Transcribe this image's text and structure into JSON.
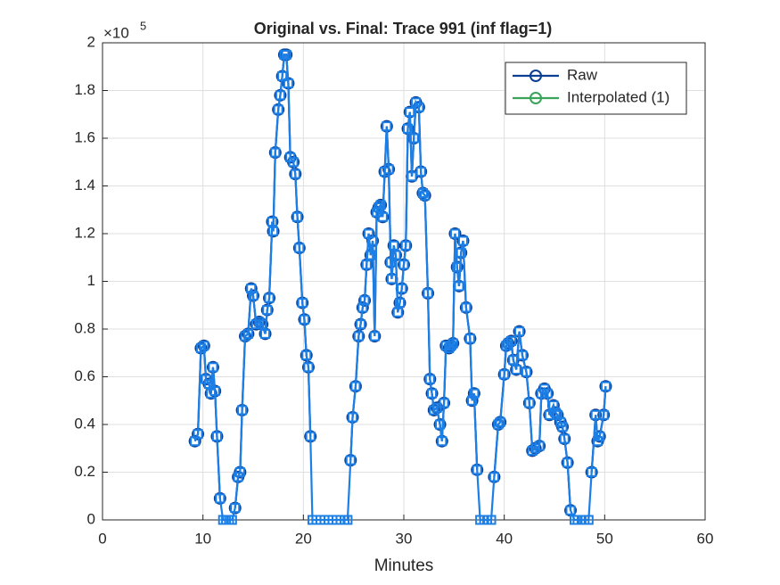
{
  "chart_data": {
    "type": "line",
    "title": "Original vs. Final: Trace 991 (inf flag=1)",
    "xlabel": "Minutes",
    "y_exponent_base": "×10",
    "y_exponent": "5",
    "xlim": [
      0,
      60
    ],
    "xticks": [
      0,
      10,
      20,
      30,
      40,
      50,
      60
    ],
    "ylim": [
      0,
      200000
    ],
    "yticks": [
      0,
      {
        "value": 20000,
        "label": "0.2"
      },
      {
        "value": 40000,
        "label": "0.4"
      },
      {
        "value": 60000,
        "label": "0.6"
      },
      {
        "value": 80000,
        "label": "0.8"
      },
      {
        "value": 100000,
        "label": "1"
      },
      {
        "value": 120000,
        "label": "1.2"
      },
      {
        "value": 140000,
        "label": "1.4"
      },
      {
        "value": 160000,
        "label": "1.6"
      },
      {
        "value": 180000,
        "label": "1.8"
      },
      {
        "value": 200000,
        "label": "2"
      }
    ],
    "grid": true,
    "legend": "upper right",
    "x": [
      9.2,
      9.5,
      9.8,
      10.1,
      10.3,
      10.6,
      10.8,
      11.0,
      11.2,
      11.4,
      11.7,
      12.0,
      12.3,
      12.6,
      12.9,
      13.2,
      13.5,
      13.7,
      13.9,
      14.2,
      14.5,
      14.8,
      15.0,
      15.3,
      15.6,
      15.9,
      16.2,
      16.4,
      16.6,
      16.9,
      17.0,
      17.2,
      17.5,
      17.7,
      17.9,
      18.1,
      18.3,
      18.5,
      18.7,
      19.0,
      19.2,
      19.4,
      19.6,
      19.9,
      20.1,
      20.3,
      20.5,
      20.7,
      20.9,
      21.3,
      21.7,
      22.1,
      22.5,
      22.9,
      23.3,
      23.7,
      24.1,
      24.4,
      24.7,
      24.9,
      25.2,
      25.5,
      25.7,
      25.9,
      26.1,
      26.3,
      26.5,
      26.7,
      26.9,
      27.1,
      27.3,
      27.5,
      27.7,
      27.9,
      28.1,
      28.3,
      28.5,
      28.7,
      28.8,
      29.0,
      29.2,
      29.4,
      29.6,
      29.8,
      30.0,
      30.2,
      30.4,
      30.6,
      30.8,
      31.0,
      31.2,
      31.5,
      31.7,
      31.9,
      32.1,
      32.4,
      32.6,
      32.8,
      33.0,
      33.3,
      33.6,
      33.8,
      34.0,
      34.2,
      34.5,
      34.7,
      34.9,
      35.1,
      35.3,
      35.5,
      35.7,
      35.9,
      36.2,
      36.6,
      36.8,
      37.0,
      37.3,
      37.6,
      38.0,
      38.3,
      38.7,
      39.0,
      39.4,
      39.6,
      40.0,
      40.2,
      40.4,
      40.7,
      40.9,
      41.2,
      41.5,
      41.8,
      42.2,
      42.5,
      42.8,
      43.1,
      43.5,
      43.7,
      44.0,
      44.3,
      44.5,
      44.9,
      45.1,
      45.3,
      45.6,
      45.8,
      46.0,
      46.3,
      46.6,
      47.0,
      47.3,
      47.7,
      48.0,
      48.4,
      48.7,
      49.1,
      49.3,
      49.5,
      49.9,
      50.1
    ],
    "series": [
      {
        "name": "Raw",
        "color": "#0b3f94",
        "marker": "circle",
        "values": [
          33000,
          36000,
          72000,
          73000,
          59000,
          57000,
          53000,
          64000,
          54000,
          35000,
          9000,
          null,
          null,
          null,
          null,
          5000,
          18000,
          20000,
          46000,
          77000,
          78000,
          97000,
          94000,
          82000,
          83000,
          82000,
          78000,
          88000,
          93000,
          125000,
          121000,
          154000,
          172000,
          178000,
          186000,
          195000,
          195000,
          183000,
          152000,
          150000,
          145000,
          127000,
          114000,
          91000,
          84000,
          69000,
          64000,
          35000,
          null,
          null,
          null,
          null,
          null,
          null,
          null,
          null,
          null,
          null,
          25000,
          43000,
          56000,
          77000,
          82000,
          89000,
          92000,
          107000,
          120000,
          111000,
          117000,
          77000,
          129000,
          131000,
          132000,
          127000,
          146000,
          165000,
          147000,
          108000,
          101000,
          115000,
          111000,
          87000,
          91000,
          97000,
          107000,
          115000,
          164000,
          171000,
          144000,
          160000,
          175000,
          173000,
          146000,
          137000,
          136000,
          95000,
          59000,
          53000,
          46000,
          47000,
          40000,
          33000,
          49000,
          73000,
          72000,
          73000,
          74000,
          120000,
          106000,
          98000,
          112000,
          117000,
          89000,
          76000,
          50000,
          53000,
          21000,
          null,
          null,
          null,
          null,
          18000,
          40000,
          41000,
          61000,
          73000,
          74000,
          75000,
          67000,
          63000,
          79000,
          69000,
          62000,
          49000,
          29000,
          30000,
          31000,
          53000,
          55000,
          53000,
          44000,
          48000,
          45000,
          44000,
          41000,
          39000,
          34000,
          24000,
          4000,
          null,
          null,
          null,
          null,
          null,
          20000,
          44000,
          33000,
          35000,
          44000,
          56000
        ]
      },
      {
        "name": "Interpolated (1)",
        "color": "#3aa35a",
        "marker": "circle",
        "values": [
          null,
          null,
          null,
          null,
          null,
          null,
          null,
          null,
          null,
          null,
          null,
          null,
          null,
          null,
          null,
          null,
          null,
          null,
          null,
          null,
          null,
          null,
          null,
          null,
          null,
          null,
          null,
          null,
          null,
          null,
          null,
          null,
          null,
          null,
          null,
          null,
          null,
          null,
          null,
          null,
          null,
          null,
          null,
          null,
          null,
          null,
          null,
          null,
          null,
          null,
          null,
          null,
          null,
          null,
          null,
          null,
          null,
          null,
          null,
          null,
          null,
          null,
          null,
          null,
          null,
          null,
          null,
          null,
          null,
          null,
          null,
          null,
          null,
          null,
          null,
          null,
          null,
          null,
          null,
          null,
          null,
          null,
          null,
          null,
          null,
          null,
          null,
          null,
          null,
          null,
          null,
          null,
          null,
          null,
          null,
          null,
          null,
          null,
          null,
          null,
          null,
          null,
          null,
          null,
          null,
          null,
          null,
          null,
          null,
          null,
          null,
          null,
          null,
          null,
          null,
          null,
          null,
          null,
          null,
          null,
          null,
          null,
          null,
          null,
          null,
          null,
          null,
          null,
          null,
          null,
          null,
          null,
          null,
          null,
          null,
          null,
          null,
          null,
          null,
          null,
          null,
          null,
          null,
          null,
          null,
          null,
          null,
          null,
          null,
          null,
          null,
          null,
          null,
          null,
          null,
          null,
          null,
          null,
          null,
          null
        ]
      },
      {
        "color": "#1c7fe6",
        "marker": "square",
        "values": [
          33000,
          36000,
          72000,
          73000,
          59000,
          57000,
          53000,
          64000,
          54000,
          35000,
          9000,
          0,
          0,
          0,
          0,
          5000,
          18000,
          20000,
          46000,
          77000,
          78000,
          97000,
          94000,
          82000,
          83000,
          82000,
          78000,
          88000,
          93000,
          125000,
          121000,
          154000,
          172000,
          178000,
          186000,
          195000,
          195000,
          183000,
          152000,
          150000,
          145000,
          127000,
          114000,
          91000,
          84000,
          69000,
          64000,
          35000,
          0,
          0,
          0,
          0,
          0,
          0,
          0,
          0,
          0,
          0,
          25000,
          43000,
          56000,
          77000,
          82000,
          89000,
          92000,
          107000,
          120000,
          111000,
          117000,
          77000,
          129000,
          131000,
          132000,
          127000,
          146000,
          165000,
          147000,
          108000,
          101000,
          115000,
          111000,
          87000,
          91000,
          97000,
          107000,
          115000,
          164000,
          171000,
          144000,
          160000,
          175000,
          173000,
          146000,
          137000,
          136000,
          95000,
          59000,
          53000,
          46000,
          47000,
          40000,
          33000,
          49000,
          73000,
          72000,
          73000,
          74000,
          120000,
          106000,
          98000,
          112000,
          117000,
          89000,
          76000,
          50000,
          53000,
          21000,
          0,
          0,
          0,
          0,
          18000,
          40000,
          41000,
          61000,
          73000,
          74000,
          75000,
          67000,
          63000,
          79000,
          69000,
          62000,
          49000,
          29000,
          30000,
          31000,
          53000,
          55000,
          53000,
          44000,
          48000,
          45000,
          44000,
          41000,
          39000,
          34000,
          24000,
          4000,
          0,
          0,
          0,
          0,
          0,
          20000,
          44000,
          33000,
          35000,
          44000,
          56000
        ]
      }
    ]
  }
}
